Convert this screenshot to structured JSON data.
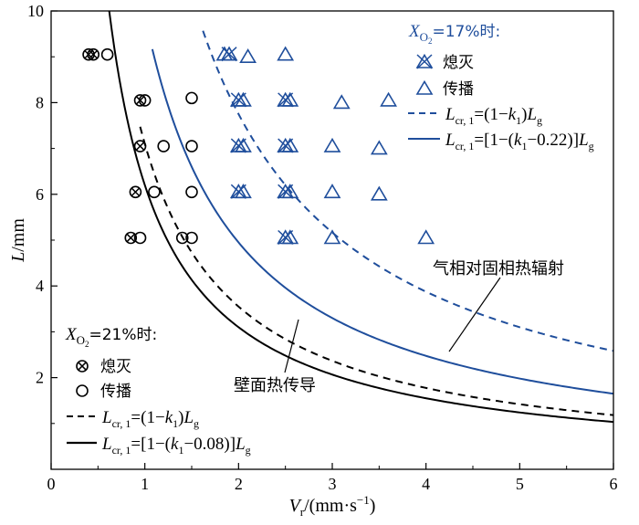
{
  "chart_data": {
    "type": "scatter",
    "xlabel": {
      "sym": "V",
      "sub": "r",
      "unit": "/(mm·s",
      "sup": "−1",
      "close": ")"
    },
    "ylabel": {
      "sym": "L",
      "unit": "/mm"
    },
    "xlim": [
      0,
      6
    ],
    "ylim": [
      0,
      10
    ],
    "x_ticks": [
      "0",
      "1",
      "2",
      "3",
      "4",
      "5",
      "6"
    ],
    "y_ticks": [
      "2",
      "4",
      "6",
      "8",
      "10"
    ],
    "colors": {
      "o21": "#000000",
      "o17": "#1f4e9c"
    },
    "group21": {
      "title": {
        "sym": "X",
        "sub": "O",
        "subsub": "2",
        "rest": "=21%时:"
      },
      "extinct_label": "熄灭",
      "propagate_label": "传播",
      "extinct": [
        [
          0.4,
          9.05
        ],
        [
          0.45,
          9.05
        ],
        [
          0.95,
          8.05
        ],
        [
          0.95,
          7.05
        ],
        [
          0.9,
          6.05
        ],
        [
          0.85,
          5.05
        ]
      ],
      "propagate": [
        [
          0.6,
          9.05
        ],
        [
          1.0,
          8.05
        ],
        [
          1.5,
          8.1
        ],
        [
          1.2,
          7.05
        ],
        [
          1.5,
          7.05
        ],
        [
          1.1,
          6.05
        ],
        [
          1.5,
          6.05
        ],
        [
          0.95,
          5.05
        ],
        [
          1.4,
          5.05
        ],
        [
          1.5,
          5.05
        ]
      ]
    },
    "group17": {
      "title": {
        "sym": "X",
        "sub": "O",
        "subsub": "2",
        "rest": "=17%时:"
      },
      "extinct_label": "熄灭",
      "propagate_label": "传播",
      "extinct": [
        [
          1.9,
          9.05
        ],
        [
          2.0,
          8.05
        ],
        [
          2.5,
          8.05
        ],
        [
          2.0,
          7.05
        ],
        [
          2.5,
          7.05
        ],
        [
          2.0,
          6.05
        ],
        [
          2.5,
          6.05
        ],
        [
          2.5,
          5.05
        ]
      ],
      "propagate": [
        [
          1.85,
          9.05
        ],
        [
          2.1,
          9.0
        ],
        [
          2.5,
          9.05
        ],
        [
          2.05,
          8.05
        ],
        [
          2.55,
          8.05
        ],
        [
          3.1,
          8.0
        ],
        [
          3.6,
          8.05
        ],
        [
          2.05,
          7.05
        ],
        [
          2.55,
          7.05
        ],
        [
          3.0,
          7.05
        ],
        [
          3.5,
          7.0
        ],
        [
          2.05,
          6.05
        ],
        [
          2.55,
          6.05
        ],
        [
          3.0,
          6.05
        ],
        [
          3.5,
          6.0
        ],
        [
          2.55,
          5.05
        ],
        [
          3.0,
          5.05
        ],
        [
          4.0,
          5.05
        ]
      ]
    },
    "curves": [
      {
        "id": "c21_dash",
        "k": 7.1,
        "x_start": 0.95,
        "color": "#000000",
        "dashed": true
      },
      {
        "id": "c21_solid",
        "k": 6.2,
        "x_start": 0.62,
        "color": "#000000",
        "dashed": false
      },
      {
        "id": "c17_dash",
        "k": 15.5,
        "x_start": 1.62,
        "color": "#1f4e9c",
        "dashed": true
      },
      {
        "id": "c17_solid",
        "k": 9.9,
        "x_start": 1.08,
        "color": "#1f4e9c",
        "dashed": false
      }
    ],
    "legend_eq": {
      "L": "L",
      "sub": "cr, 1",
      "eq_a": "=(1−",
      "k": "k",
      "ksub": "1",
      "eq_a_end": ")",
      "Lg": "L",
      "g": "g",
      "eq_b": "=[1−(",
      "eq_b_17_end": "−0.22)]",
      "eq_b_21_end": "−0.08)]"
    },
    "annotations": {
      "radiation": "气相对固相热辐射",
      "conduction": "壁面热传导"
    }
  }
}
